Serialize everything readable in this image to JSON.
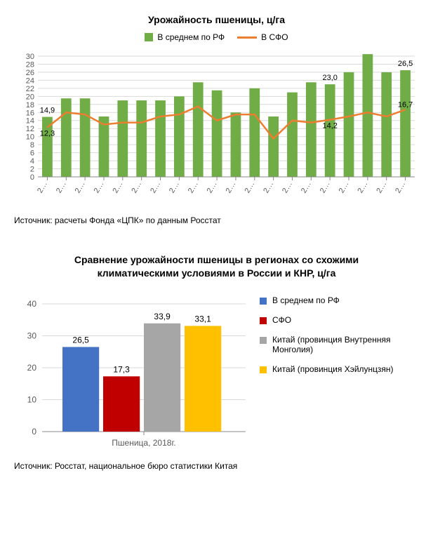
{
  "chart1": {
    "type": "bar+line",
    "title": "Урожайность пшеницы, ц/га",
    "legend": {
      "bar_label": "В среднем по РФ",
      "line_label": "В СФО"
    },
    "bar_color": "#70ad47",
    "line_color": "#ed7d31",
    "grid_color": "#d9d9d9",
    "axis_color": "#888888",
    "text_color": "#595959",
    "ylim": [
      0,
      30
    ],
    "ytick_step": 2,
    "xlabels": [
      "2…",
      "2…",
      "2…",
      "2…",
      "2…",
      "2…",
      "2…",
      "2…",
      "2…",
      "2…",
      "2…",
      "2…",
      "2…",
      "2…",
      "2…",
      "2…",
      "2…",
      "2…",
      "2…",
      "2…"
    ],
    "bars": [
      14.9,
      19.5,
      19.5,
      15.0,
      19.0,
      19.0,
      19.0,
      20.0,
      23.5,
      21.5,
      16.0,
      22.0,
      15.0,
      21.0,
      23.5,
      23.0,
      26.0,
      30.5,
      26.0,
      26.5
    ],
    "line": [
      12.3,
      16.0,
      15.5,
      13.0,
      13.5,
      13.5,
      15.0,
      15.5,
      17.5,
      14.0,
      15.5,
      15.5,
      9.5,
      14.0,
      13.5,
      14.2,
      15.0,
      16.0,
      15.0,
      16.7
    ],
    "annotations": [
      {
        "idx": 0,
        "series": "bar",
        "text": "14,9",
        "dy": -6
      },
      {
        "idx": 0,
        "series": "line",
        "text": "12,3",
        "dy": 12
      },
      {
        "idx": 15,
        "series": "bar",
        "text": "23,0",
        "dy": -6
      },
      {
        "idx": 15,
        "series": "line",
        "text": "14,2",
        "dy": 12
      },
      {
        "idx": 19,
        "series": "bar",
        "text": "26,5",
        "dy": -6
      },
      {
        "idx": 19,
        "series": "line",
        "text": "16,7",
        "dy": -4
      }
    ],
    "label_fontsize": 11,
    "tick_fontsize": 11,
    "source": "Источник: расчеты Фонда «ЦПК» по данным Росстат"
  },
  "chart2": {
    "type": "bar",
    "title": "Сравнение урожайности пшеницы в регионах со схожими климатическими условиями в России и КНР, ц/га",
    "xlabel": "Пшеница, 2018г.",
    "ylim": [
      0,
      40
    ],
    "ytick_step": 10,
    "grid_color": "#d9d9d9",
    "axis_color": "#888888",
    "text_color": "#595959",
    "label_fontsize": 11,
    "tick_fontsize": 12,
    "series": [
      {
        "label": "В среднем по РФ",
        "value": 26.5,
        "value_text": "26,5",
        "color": "#4472c4"
      },
      {
        "label": "СФО",
        "value": 17.3,
        "value_text": "17,3",
        "color": "#c00000"
      },
      {
        "label": "Китай (провинция Внутренняя Монголия)",
        "value": 33.9,
        "value_text": "33,9",
        "color": "#a6a6a6"
      },
      {
        "label": "Китай (провинция Хэйлунцзян)",
        "value": 33.1,
        "value_text": "33,1",
        "color": "#ffc000"
      }
    ],
    "source": "Источник: Росстат, национальное бюро статистики Китая"
  }
}
